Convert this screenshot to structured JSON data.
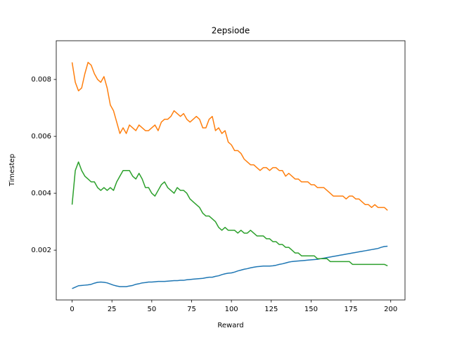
{
  "chart_data": {
    "type": "line",
    "title": "2epsiode",
    "x_label": "Reward",
    "y_label": "Timestep",
    "x": [
      0,
      2,
      4,
      6,
      8,
      10,
      12,
      14,
      16,
      18,
      20,
      22,
      24,
      26,
      28,
      30,
      32,
      34,
      36,
      38,
      40,
      42,
      44,
      46,
      48,
      50,
      52,
      54,
      56,
      58,
      60,
      62,
      64,
      66,
      68,
      70,
      72,
      74,
      76,
      78,
      80,
      82,
      84,
      86,
      88,
      90,
      92,
      94,
      96,
      98,
      100,
      102,
      104,
      106,
      108,
      110,
      112,
      114,
      116,
      118,
      120,
      122,
      124,
      126,
      128,
      130,
      132,
      134,
      136,
      138,
      140,
      142,
      144,
      146,
      148,
      150,
      152,
      154,
      156,
      158,
      160,
      162,
      164,
      166,
      168,
      170,
      172,
      174,
      176,
      178,
      180,
      182,
      184,
      186,
      188,
      190,
      192,
      194,
      196,
      198
    ],
    "series": [
      {
        "color": "#1f77b4",
        "values": [
          0.00065,
          0.0007,
          0.00075,
          0.00076,
          0.00077,
          0.00078,
          0.0008,
          0.00084,
          0.00087,
          0.00088,
          0.00087,
          0.00085,
          0.00081,
          0.00077,
          0.00074,
          0.00072,
          0.00072,
          0.00072,
          0.00074,
          0.00076,
          0.0008,
          0.00082,
          0.00085,
          0.00086,
          0.00088,
          0.00088,
          0.00089,
          0.0009,
          0.0009,
          0.0009,
          0.00091,
          0.00092,
          0.00093,
          0.00093,
          0.00094,
          0.00094,
          0.00096,
          0.00097,
          0.00098,
          0.00099,
          0.001,
          0.00101,
          0.00103,
          0.00105,
          0.00105,
          0.00108,
          0.0011,
          0.00114,
          0.00117,
          0.00119,
          0.0012,
          0.00123,
          0.00127,
          0.0013,
          0.00133,
          0.00135,
          0.00138,
          0.0014,
          0.00142,
          0.00143,
          0.00144,
          0.00144,
          0.00144,
          0.00145,
          0.00147,
          0.0015,
          0.00152,
          0.00155,
          0.00158,
          0.0016,
          0.00161,
          0.00162,
          0.00163,
          0.00164,
          0.00165,
          0.00166,
          0.00167,
          0.00168,
          0.0017,
          0.00172,
          0.00174,
          0.00176,
          0.00178,
          0.0018,
          0.00182,
          0.00184,
          0.00186,
          0.00188,
          0.0019,
          0.00192,
          0.00194,
          0.00196,
          0.00198,
          0.002,
          0.00202,
          0.00204,
          0.00206,
          0.0021,
          0.00213,
          0.00214
        ]
      },
      {
        "color": "#ff7f0e",
        "values": [
          0.0086,
          0.0079,
          0.0076,
          0.0077,
          0.0082,
          0.0086,
          0.0085,
          0.0082,
          0.008,
          0.0079,
          0.0081,
          0.0077,
          0.0071,
          0.0069,
          0.0065,
          0.0061,
          0.0063,
          0.0061,
          0.0064,
          0.0063,
          0.0062,
          0.0064,
          0.0063,
          0.0062,
          0.0062,
          0.0063,
          0.0064,
          0.0062,
          0.0065,
          0.0066,
          0.0066,
          0.0067,
          0.0069,
          0.0068,
          0.0067,
          0.0068,
          0.0066,
          0.0065,
          0.0066,
          0.0067,
          0.0066,
          0.0063,
          0.0063,
          0.0066,
          0.0067,
          0.0062,
          0.0063,
          0.0061,
          0.0062,
          0.0058,
          0.0057,
          0.0055,
          0.0055,
          0.0054,
          0.0052,
          0.0051,
          0.005,
          0.005,
          0.0049,
          0.0048,
          0.0049,
          0.0049,
          0.0048,
          0.0049,
          0.0049,
          0.0048,
          0.0048,
          0.0046,
          0.0047,
          0.0046,
          0.0045,
          0.0045,
          0.0044,
          0.0044,
          0.0044,
          0.0043,
          0.0043,
          0.0042,
          0.0042,
          0.0042,
          0.0041,
          0.004,
          0.0039,
          0.0039,
          0.0039,
          0.0039,
          0.0038,
          0.0039,
          0.0039,
          0.0038,
          0.0038,
          0.0037,
          0.0036,
          0.0036,
          0.0035,
          0.0036,
          0.0035,
          0.0035,
          0.0035,
          0.0034
        ]
      },
      {
        "color": "#2ca02c",
        "values": [
          0.0036,
          0.0048,
          0.0051,
          0.0048,
          0.0046,
          0.0045,
          0.0044,
          0.0044,
          0.0042,
          0.0041,
          0.0042,
          0.0041,
          0.0042,
          0.0041,
          0.0044,
          0.0046,
          0.0048,
          0.0048,
          0.0048,
          0.0046,
          0.0045,
          0.0047,
          0.0045,
          0.0042,
          0.0042,
          0.004,
          0.0039,
          0.0041,
          0.0043,
          0.0044,
          0.0042,
          0.0041,
          0.004,
          0.0042,
          0.0041,
          0.0041,
          0.004,
          0.0038,
          0.0037,
          0.0036,
          0.0035,
          0.0033,
          0.0032,
          0.0032,
          0.0031,
          0.003,
          0.0028,
          0.0027,
          0.0028,
          0.0027,
          0.0027,
          0.0027,
          0.0026,
          0.0027,
          0.0026,
          0.0026,
          0.0027,
          0.0026,
          0.0025,
          0.0025,
          0.0025,
          0.0024,
          0.0024,
          0.0023,
          0.0023,
          0.0022,
          0.0022,
          0.0021,
          0.0021,
          0.002,
          0.0019,
          0.0019,
          0.0018,
          0.0018,
          0.0018,
          0.0018,
          0.0018,
          0.0017,
          0.0017,
          0.0017,
          0.0017,
          0.0016,
          0.0016,
          0.0016,
          0.0016,
          0.0016,
          0.0016,
          0.0016,
          0.0015,
          0.0015,
          0.0015,
          0.0015,
          0.0015,
          0.0015,
          0.0015,
          0.0015,
          0.0015,
          0.0015,
          0.0015,
          0.00145
        ]
      }
    ],
    "xlim": [
      -9.95,
      208.95
    ],
    "xticks": [
      0,
      25,
      50,
      75,
      100,
      125,
      150,
      175,
      200
    ],
    "ylim": [
      0.00025,
      0.00936
    ],
    "yticks": [
      0.002,
      0.004,
      0.006,
      0.008
    ]
  }
}
